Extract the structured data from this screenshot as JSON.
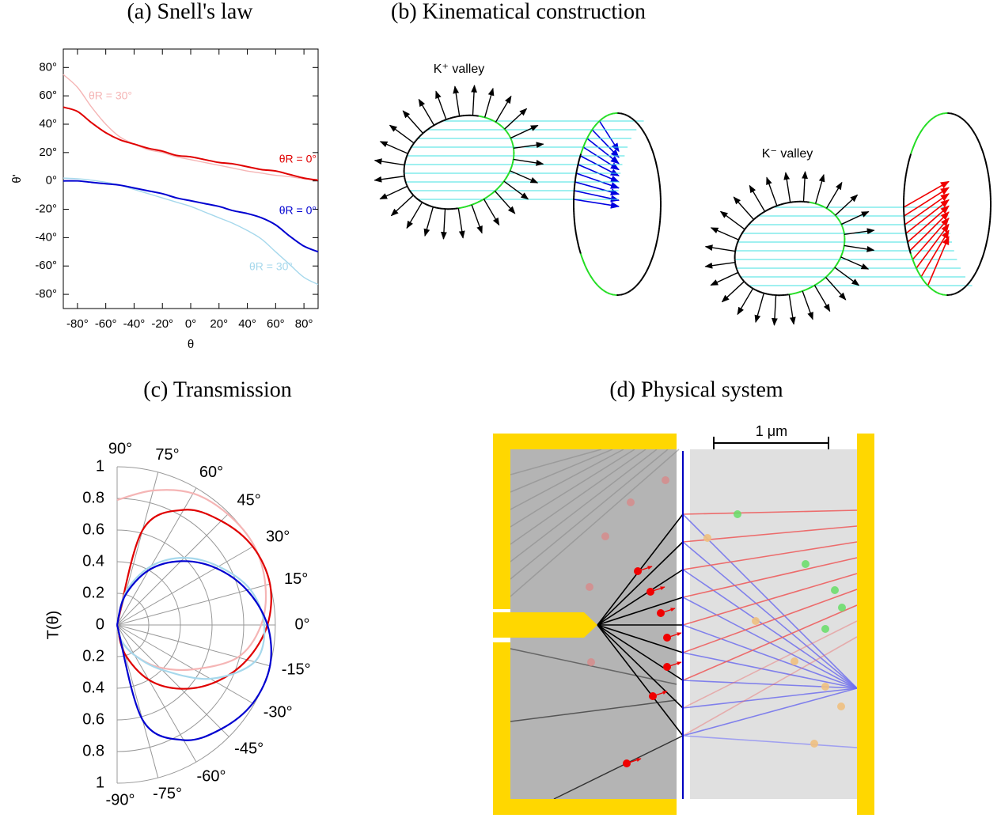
{
  "captions": [
    "(a) Snell's law",
    "(b) Kinematical construction",
    "(c) Transmission",
    "(d) Physical system"
  ],
  "chart_data": [
    {
      "type": "line",
      "xlabel": "θ",
      "ylabel": "θ'",
      "x": [
        -90,
        -80,
        -70,
        -60,
        -50,
        -40,
        -30,
        -20,
        -10,
        0,
        10,
        20,
        30,
        40,
        50,
        60,
        70,
        80,
        90
      ],
      "xlim": [
        -90,
        90
      ],
      "ylim": [
        -90,
        93
      ],
      "xticks": [
        {
          "value": -80,
          "label": "-80°"
        },
        {
          "value": -60,
          "label": "-60°"
        },
        {
          "value": -40,
          "label": "-40°"
        },
        {
          "value": -20,
          "label": "-20°"
        },
        {
          "value": 0,
          "label": "0°"
        },
        {
          "value": 20,
          "label": "20°"
        },
        {
          "value": 40,
          "label": "40°"
        },
        {
          "value": 60,
          "label": "60°"
        },
        {
          "value": 80,
          "label": "80°"
        }
      ],
      "yticks": [
        {
          "value": 80,
          "label": "80°"
        },
        {
          "value": 60,
          "label": "60°"
        },
        {
          "value": 40,
          "label": "40°"
        },
        {
          "value": 20,
          "label": "20°"
        },
        {
          "value": 0,
          "label": "0°"
        },
        {
          "value": -20,
          "label": "-20°"
        },
        {
          "value": -40,
          "label": "-40°"
        },
        {
          "value": -60,
          "label": "-60°"
        },
        {
          "value": -80,
          "label": "-80°"
        }
      ],
      "series": [
        {
          "name": "θR = 30°",
          "color": "#f5b5b5",
          "values": [
            75,
            66,
            52,
            40,
            31,
            26,
            22,
            20,
            17,
            15,
            13,
            11,
            9,
            7,
            5.5,
            4,
            3,
            1.5,
            1
          ]
        },
        {
          "name": "θR = 0°",
          "color": "#e00000",
          "values": [
            52,
            49,
            41,
            34,
            29,
            26,
            23,
            21,
            18,
            17,
            15,
            13,
            12,
            10,
            8,
            7,
            4.5,
            2,
            0.5
          ]
        },
        {
          "name": "θR = 30°",
          "color": "#a6d8ec",
          "values": [
            2,
            1.5,
            0.5,
            -1,
            -3,
            -6,
            -9,
            -12,
            -15,
            -18,
            -22,
            -26,
            -30,
            -35,
            -41,
            -50,
            -59,
            -68,
            -73
          ]
        },
        {
          "name": "θR = 0°",
          "color": "#0000d0",
          "values": [
            0,
            0,
            -1,
            -2,
            -3,
            -5,
            -7,
            -9,
            -12,
            -14,
            -16,
            -18,
            -21,
            -23,
            -26,
            -31,
            -39,
            -46,
            -50
          ]
        }
      ]
    },
    {
      "type": "polar",
      "ylabel": "T(θ)",
      "theta": [
        90,
        75,
        60,
        45,
        30,
        15,
        0,
        -15,
        -30,
        -45,
        -60,
        -75,
        -90
      ],
      "rlim": [
        0,
        1
      ],
      "rticks": [
        0,
        0.2,
        0.4,
        0.6,
        0.8,
        1
      ],
      "thetaticks": [
        {
          "value": 90,
          "label": "90°"
        },
        {
          "value": 75,
          "label": "75°"
        },
        {
          "value": 60,
          "label": "60°"
        },
        {
          "value": 45,
          "label": "45°"
        },
        {
          "value": 30,
          "label": "30°"
        },
        {
          "value": 15,
          "label": "15°"
        },
        {
          "value": 0,
          "label": "0°"
        },
        {
          "value": -15,
          "label": "-15°"
        },
        {
          "value": -30,
          "label": "-30°"
        },
        {
          "value": -45,
          "label": "-45°"
        },
        {
          "value": -60,
          "label": "-60°"
        },
        {
          "value": -75,
          "label": "-75°"
        },
        {
          "value": -90,
          "label": "-90°"
        }
      ],
      "series": [
        {
          "color": "#f5b5b5",
          "values": [
            0.79,
            0.88,
            0.96,
            0.99,
            1.0,
            0.97,
            0.91,
            0.79,
            0.56,
            0.38,
            0.22,
            0.1,
            0
          ]
        },
        {
          "color": "#e00000",
          "values": [
            0,
            0.62,
            0.84,
            0.93,
            0.99,
            1.0,
            0.95,
            0.85,
            0.72,
            0.57,
            0.4,
            0.19,
            0
          ]
        },
        {
          "color": "#a6d8ec",
          "values": [
            0,
            0.22,
            0.43,
            0.6,
            0.74,
            0.87,
            0.93,
            0.9,
            0.68,
            0.4,
            0.22,
            0.1,
            0
          ]
        },
        {
          "color": "#0000d0",
          "values": [
            0,
            0.19,
            0.4,
            0.57,
            0.72,
            0.85,
            0.95,
            1.0,
            0.99,
            0.93,
            0.84,
            0.62,
            0
          ]
        }
      ]
    }
  ],
  "diagram_b": {
    "labels": [
      "K⁺ valley",
      "K⁻ valley"
    ]
  },
  "diagram_d": {
    "scale_label": "1 μm"
  }
}
